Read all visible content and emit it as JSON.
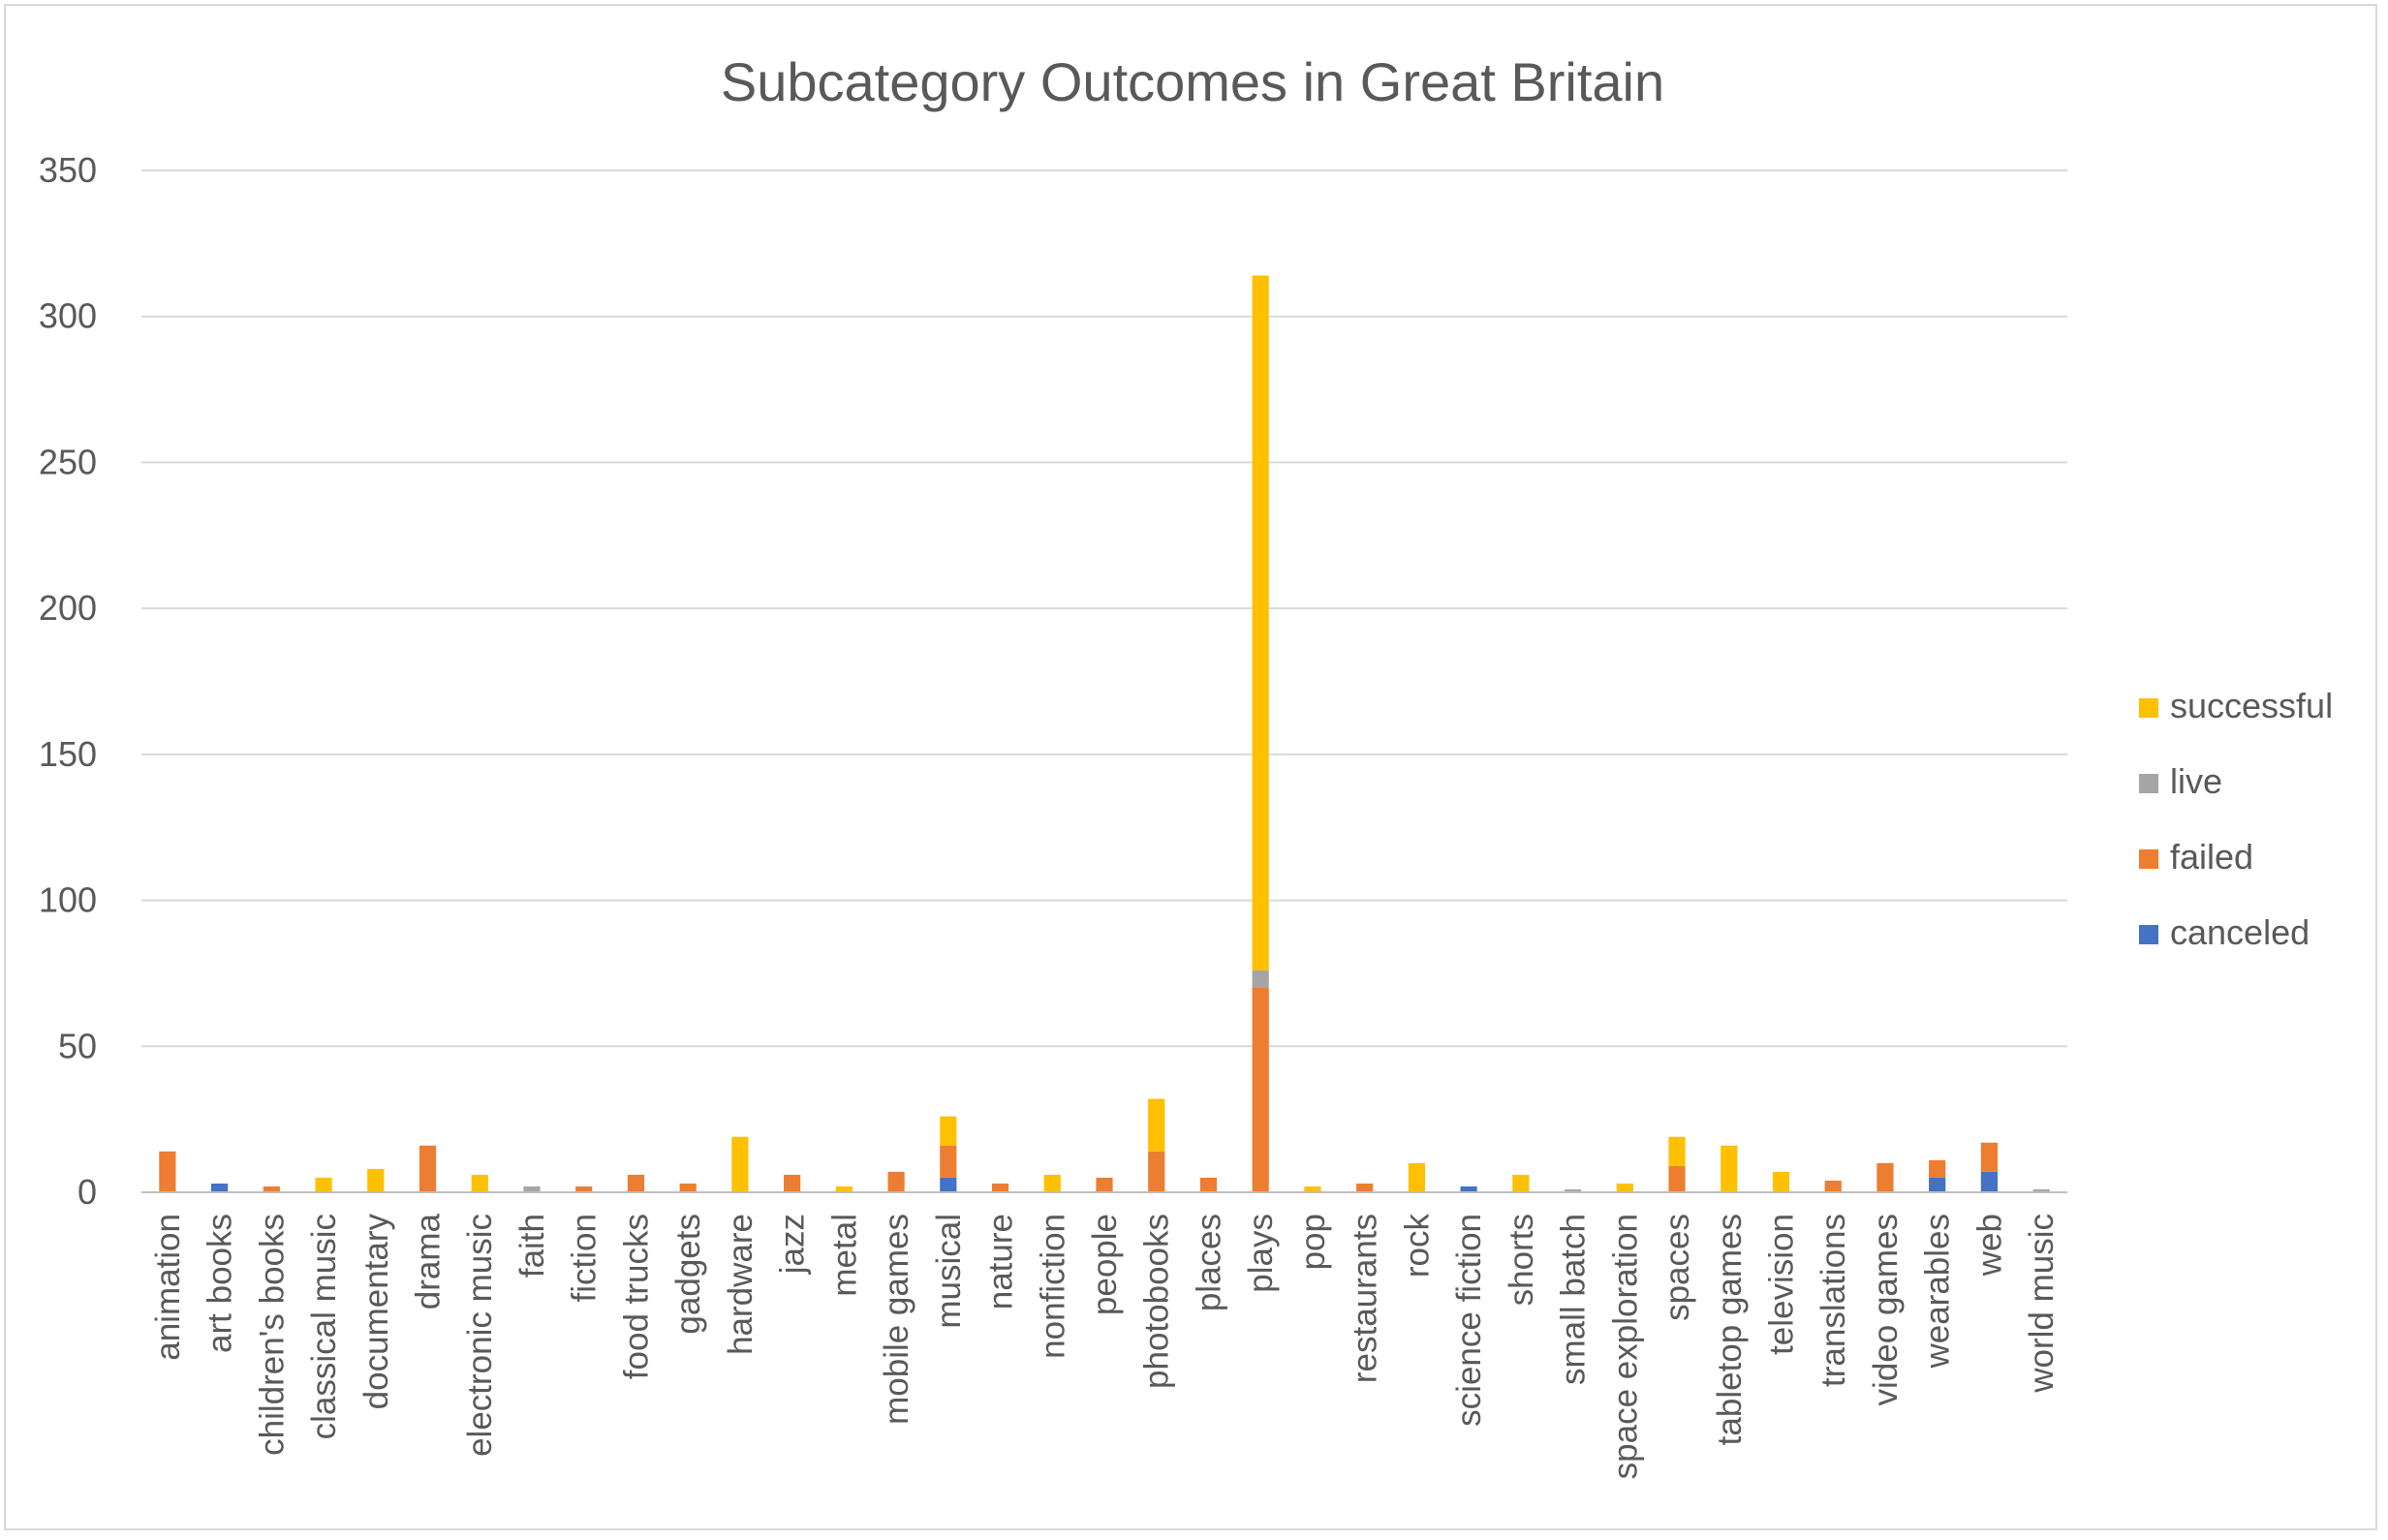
{
  "chart_data": {
    "type": "bar",
    "stacked": true,
    "title": "Subcategory Outcomes in Great Britain",
    "xlabel": "",
    "ylabel": "",
    "ylim": [
      0,
      350
    ],
    "yticks": [
      0,
      50,
      100,
      150,
      200,
      250,
      300,
      350
    ],
    "grid": true,
    "legend_position": "right",
    "categories": [
      "animation",
      "art books",
      "children's books",
      "classical music",
      "documentary",
      "drama",
      "electronic music",
      "faith",
      "fiction",
      "food trucks",
      "gadgets",
      "hardware",
      "jazz",
      "metal",
      "mobile games",
      "musical",
      "nature",
      "nonfiction",
      "people",
      "photobooks",
      "places",
      "plays",
      "pop",
      "restaurants",
      "rock",
      "science fiction",
      "shorts",
      "small batch",
      "space exploration",
      "spaces",
      "tabletop games",
      "television",
      "translations",
      "video games",
      "wearables",
      "web",
      "world music"
    ],
    "series": [
      {
        "name": "canceled",
        "color": "#4472c4",
        "values": [
          0,
          3,
          0,
          0,
          0,
          0,
          0,
          0,
          0,
          0,
          0,
          0,
          0,
          0,
          0,
          5,
          0,
          0,
          0,
          0,
          0,
          0,
          0,
          0,
          0,
          2,
          0,
          0,
          0,
          0,
          0,
          0,
          0,
          0,
          5,
          7,
          0
        ]
      },
      {
        "name": "failed",
        "color": "#ed7d31",
        "values": [
          14,
          0,
          2,
          0,
          0,
          16,
          0,
          0,
          2,
          6,
          3,
          0,
          6,
          0,
          7,
          11,
          3,
          0,
          5,
          14,
          5,
          70,
          0,
          3,
          0,
          0,
          0,
          0,
          0,
          9,
          0,
          0,
          4,
          10,
          6,
          10,
          0
        ]
      },
      {
        "name": "live",
        "color": "#a5a5a5",
        "values": [
          0,
          0,
          0,
          0,
          0,
          0,
          0,
          2,
          0,
          0,
          0,
          0,
          0,
          0,
          0,
          0,
          0,
          0,
          0,
          0,
          0,
          6,
          0,
          0,
          0,
          0,
          0,
          1,
          0,
          0,
          0,
          0,
          0,
          0,
          0,
          0,
          1
        ]
      },
      {
        "name": "successful",
        "color": "#ffc000",
        "values": [
          0,
          0,
          0,
          5,
          8,
          0,
          6,
          0,
          0,
          0,
          0,
          19,
          0,
          2,
          0,
          10,
          0,
          6,
          0,
          18,
          0,
          238,
          2,
          0,
          10,
          0,
          6,
          0,
          3,
          10,
          16,
          7,
          0,
          0,
          0,
          0,
          0
        ]
      }
    ]
  }
}
